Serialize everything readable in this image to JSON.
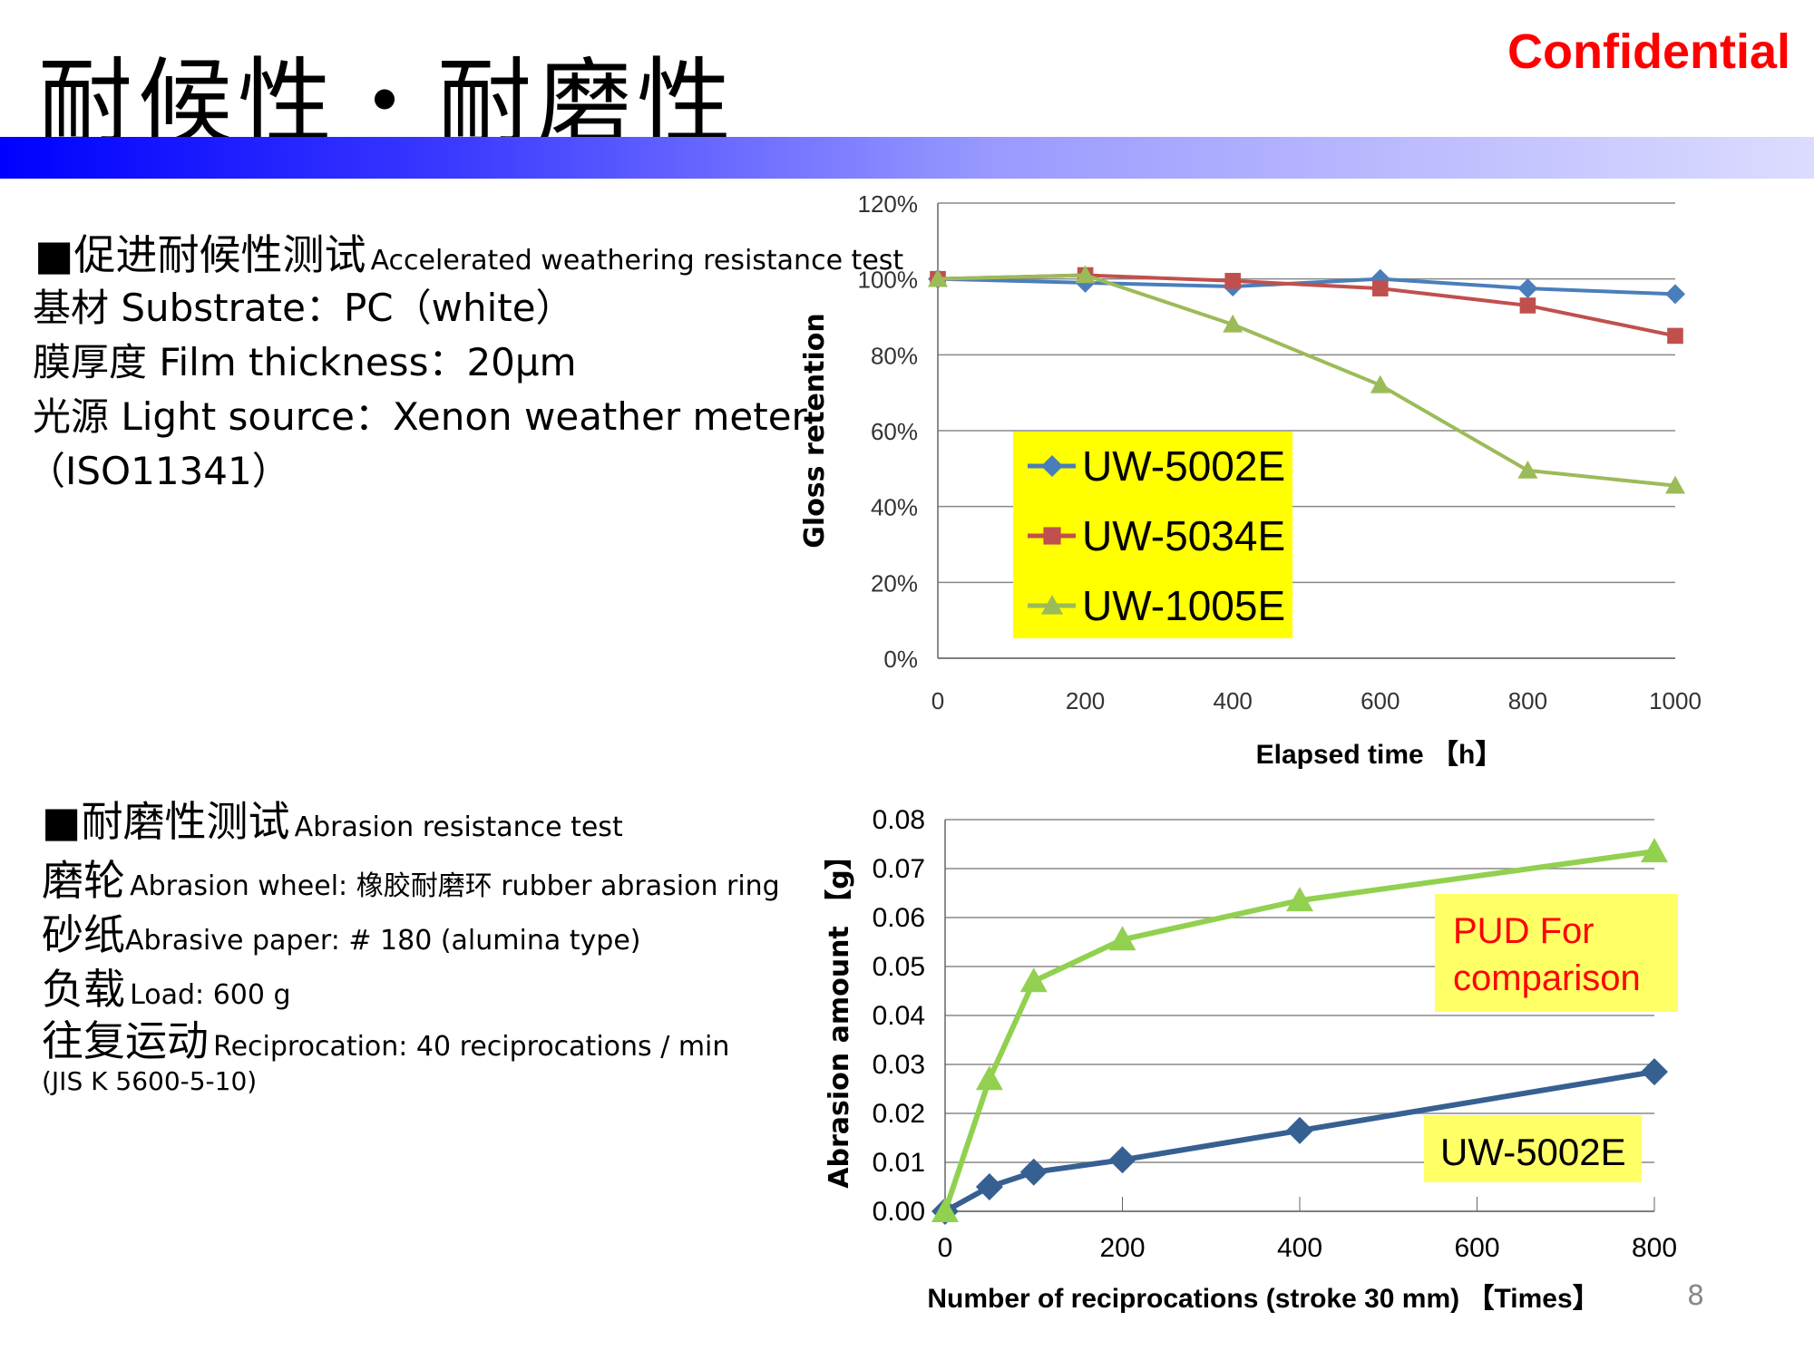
{
  "header": {
    "title": "耐候性・耐磨性",
    "confidential": "Confidential"
  },
  "weathering": {
    "heading_cn": "■促进耐候性测试",
    "heading_en": "Accelerated weathering resistance test",
    "lines": [
      "基材 Substrate：PC（white）",
      "膜厚度 Film thickness：20μm",
      "光源 Light source：Xenon weather meter",
      "（ISO11341）"
    ]
  },
  "abrasion": {
    "heading_cn": "■耐磨性测试",
    "heading_en": "Abrasion resistance test",
    "lines": [
      {
        "cn": "磨轮",
        "en": "Abrasion wheel:  橡胶耐磨环   rubber abrasion ring"
      },
      {
        "cn": "砂纸",
        "en": "Abrasive paper: # 180 (alumina type)"
      },
      {
        "cn": "负载",
        "en": "Load: 600 g"
      },
      {
        "cn": "往复运动",
        "en": "Reciprocation: 40 reciprocations / min"
      }
    ],
    "note": "(JIS K 5600-5-10)"
  },
  "page_number": "8",
  "chart_data": [
    {
      "type": "line",
      "xlabel": "Elapsed time 【h】",
      "ylabel": "Gloss retention",
      "x": [
        0,
        200,
        400,
        600,
        800,
        1000
      ],
      "xlim": [
        0,
        1000
      ],
      "ylim": [
        0,
        120
      ],
      "xticks": [
        "0",
        "200",
        "400",
        "600",
        "800",
        "1000"
      ],
      "yticks": [
        "0%",
        "20%",
        "40%",
        "60%",
        "80%",
        "100%",
        "120%"
      ],
      "grid": true,
      "legend": "center-left",
      "legend_bg": "#ffff00",
      "series": [
        {
          "name": "UW-5002E",
          "marker": "diamond",
          "color": "#4a7ebb",
          "values": [
            100,
            99,
            98,
            100,
            97.5,
            96
          ]
        },
        {
          "name": "UW-5034E",
          "marker": "square",
          "color": "#c0504d",
          "values": [
            100,
            101,
            99.5,
            97.5,
            93,
            85
          ]
        },
        {
          "name": "UW-1005E",
          "marker": "triangle",
          "color": "#9bbb59",
          "values": [
            100,
            101,
            88,
            72,
            49.5,
            45.5
          ]
        }
      ]
    },
    {
      "type": "line",
      "xlabel": "Number of reciprocations (stroke 30 mm) 【Times】",
      "ylabel": "Abrasion amount 【g】",
      "x": [
        0,
        50,
        100,
        200,
        400,
        800
      ],
      "xlim": [
        0,
        800
      ],
      "ylim": [
        0,
        0.08
      ],
      "xticks": [
        "0",
        "200",
        "400",
        "600",
        "800"
      ],
      "yticks": [
        "0.00",
        "0.01",
        "0.02",
        "0.03",
        "0.04",
        "0.05",
        "0.06",
        "0.07",
        "0.08"
      ],
      "grid": true,
      "series": [
        {
          "name": "UW-5002E",
          "marker": "diamond",
          "color": "#376092",
          "values": [
            0,
            0.005,
            0.008,
            0.0105,
            0.0165,
            0.0285
          ]
        },
        {
          "name": "PUD For comparison",
          "marker": "triangle",
          "color": "#92d050",
          "values": [
            0,
            0.027,
            0.047,
            0.0555,
            0.0635,
            0.0735
          ]
        }
      ],
      "annotations": [
        "PUD For",
        "comparison",
        "UW-5002E"
      ],
      "annotation_colors": [
        "#ff0000",
        "#000000"
      ],
      "annotation_bg": "#ffff66"
    }
  ]
}
